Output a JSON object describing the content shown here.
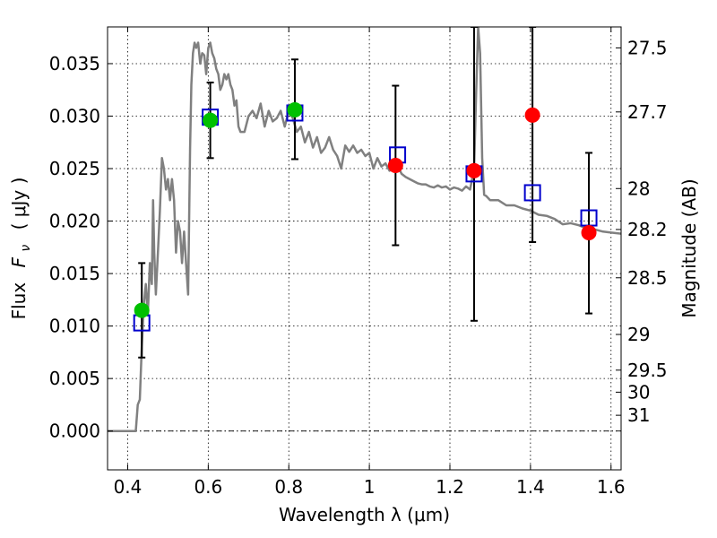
{
  "chart_data": {
    "type": "scatter",
    "xlabel": "Wavelength  λ (μm)",
    "ylabel": "Flux  F_ν  ( μJy )",
    "ylabel_parts": {
      "prefix": "Flux",
      "symbol": "F",
      "subscript": "ν",
      "unit": "( μJy )"
    },
    "ylabel_right": "Magnitude (AB)",
    "xlim": [
      0.35,
      1.625
    ],
    "ylim": [
      -0.0037,
      0.0385
    ],
    "x_ticks": [
      0.4,
      0.6,
      0.8,
      1.0,
      1.2,
      1.4,
      1.6
    ],
    "x_tick_labels": [
      "0.4",
      "0.6",
      "0.8",
      "1",
      "1.2",
      "1.4",
      "1.6"
    ],
    "y_ticks": [
      0.0,
      0.005,
      0.01,
      0.015,
      0.02,
      0.025,
      0.03,
      0.035
    ],
    "y_tick_labels": [
      "0.000",
      "0.005",
      "0.010",
      "0.015",
      "0.020",
      "0.025",
      "0.030",
      "0.035"
    ],
    "right_ticks": [
      {
        "label": "27.5",
        "flux": 0.0365
      },
      {
        "label": "27.7",
        "flux": 0.0304
      },
      {
        "label": "28",
        "flux": 0.0231
      },
      {
        "label": "28.2",
        "flux": 0.0192
      },
      {
        "label": "28.5",
        "flux": 0.0146
      },
      {
        "label": "29",
        "flux": 0.0092
      },
      {
        "label": "29.5",
        "flux": 0.0058
      },
      {
        "label": "30",
        "flux": 0.0037
      },
      {
        "label": "31",
        "flux": 0.0015
      }
    ],
    "grid": true,
    "series": [
      {
        "kind": "line",
        "color": "#808080",
        "x": [
          0.35,
          0.42,
          0.425,
          0.43,
          0.435,
          0.44,
          0.445,
          0.45,
          0.455,
          0.46,
          0.463,
          0.466,
          0.47,
          0.475,
          0.48,
          0.485,
          0.49,
          0.495,
          0.5,
          0.505,
          0.51,
          0.515,
          0.52,
          0.525,
          0.53,
          0.535,
          0.54,
          0.545,
          0.55,
          0.555,
          0.558,
          0.562,
          0.566,
          0.57,
          0.575,
          0.58,
          0.585,
          0.59,
          0.595,
          0.6,
          0.605,
          0.61,
          0.615,
          0.62,
          0.625,
          0.63,
          0.635,
          0.64,
          0.645,
          0.65,
          0.655,
          0.66,
          0.665,
          0.67,
          0.675,
          0.68,
          0.69,
          0.7,
          0.71,
          0.72,
          0.73,
          0.74,
          0.75,
          0.76,
          0.77,
          0.78,
          0.79,
          0.8,
          0.81,
          0.82,
          0.83,
          0.84,
          0.85,
          0.86,
          0.87,
          0.88,
          0.89,
          0.9,
          0.91,
          0.92,
          0.93,
          0.94,
          0.95,
          0.96,
          0.97,
          0.98,
          0.99,
          1.0,
          1.01,
          1.02,
          1.03,
          1.04,
          1.05,
          1.06,
          1.07,
          1.08,
          1.09,
          1.1,
          1.11,
          1.12,
          1.13,
          1.14,
          1.15,
          1.16,
          1.17,
          1.18,
          1.19,
          1.2,
          1.21,
          1.22,
          1.23,
          1.24,
          1.25,
          1.26,
          1.265,
          1.27,
          1.275,
          1.28,
          1.285,
          1.29,
          1.3,
          1.32,
          1.34,
          1.36,
          1.38,
          1.4,
          1.42,
          1.44,
          1.46,
          1.48,
          1.5,
          1.52,
          1.54,
          1.56,
          1.58,
          1.6,
          1.625
        ],
        "y": [
          0.0,
          0.0,
          0.0025,
          0.003,
          0.008,
          0.012,
          0.014,
          0.011,
          0.016,
          0.014,
          0.022,
          0.017,
          0.013,
          0.017,
          0.021,
          0.026,
          0.025,
          0.023,
          0.024,
          0.022,
          0.024,
          0.022,
          0.017,
          0.02,
          0.019,
          0.016,
          0.019,
          0.016,
          0.013,
          0.027,
          0.033,
          0.036,
          0.037,
          0.0365,
          0.037,
          0.035,
          0.036,
          0.0358,
          0.034,
          0.0365,
          0.037,
          0.036,
          0.0355,
          0.0345,
          0.034,
          0.0325,
          0.033,
          0.034,
          0.0335,
          0.034,
          0.033,
          0.0325,
          0.031,
          0.0315,
          0.029,
          0.0285,
          0.0285,
          0.03,
          0.0305,
          0.0298,
          0.0312,
          0.029,
          0.0305,
          0.0295,
          0.0298,
          0.0305,
          0.029,
          0.0305,
          0.0298,
          0.0285,
          0.029,
          0.0275,
          0.0285,
          0.027,
          0.028,
          0.0265,
          0.027,
          0.028,
          0.0268,
          0.0262,
          0.025,
          0.0272,
          0.0266,
          0.0272,
          0.0265,
          0.0268,
          0.0262,
          0.0265,
          0.025,
          0.026,
          0.0252,
          0.0255,
          0.0248,
          0.025,
          0.0253,
          0.0245,
          0.0242,
          0.024,
          0.0238,
          0.0236,
          0.0235,
          0.0235,
          0.0233,
          0.0232,
          0.0234,
          0.0232,
          0.0233,
          0.023,
          0.0232,
          0.0231,
          0.0229,
          0.0233,
          0.023,
          0.025,
          0.032,
          0.0385,
          0.036,
          0.026,
          0.0225,
          0.0224,
          0.022,
          0.022,
          0.0215,
          0.0215,
          0.0212,
          0.021,
          0.0206,
          0.0205,
          0.0202,
          0.0197,
          0.0198,
          0.0196,
          0.0193,
          0.0192,
          0.019,
          0.0189,
          0.0188
        ]
      },
      {
        "kind": "squares",
        "color": "#0000cc",
        "x": [
          0.435,
          0.605,
          0.815,
          1.07,
          1.26,
          1.405,
          1.545
        ],
        "y": [
          0.0103,
          0.0299,
          0.0303,
          0.0263,
          0.0245,
          0.0227,
          0.0203
        ]
      },
      {
        "kind": "circles",
        "color": "#00c000",
        "x": [
          0.435,
          0.605,
          0.815
        ],
        "y": [
          0.0115,
          0.0296,
          0.0306
        ],
        "err_low": [
          0.007,
          0.026,
          0.0259
        ],
        "err_high": [
          0.016,
          0.0332,
          0.0354
        ]
      },
      {
        "kind": "circles",
        "color": "#ff0000",
        "x": [
          1.065,
          1.26,
          1.405,
          1.545
        ],
        "y": [
          0.0253,
          0.0248,
          0.0301,
          0.0189
        ],
        "err_low": [
          0.0177,
          0.0105,
          0.018,
          0.0112
        ],
        "err_high": [
          0.0329,
          0.0385,
          0.0385,
          0.0265
        ]
      }
    ],
    "colors": {
      "axis": "#000000",
      "grid": "#000000",
      "zero_line": "#000000"
    }
  }
}
